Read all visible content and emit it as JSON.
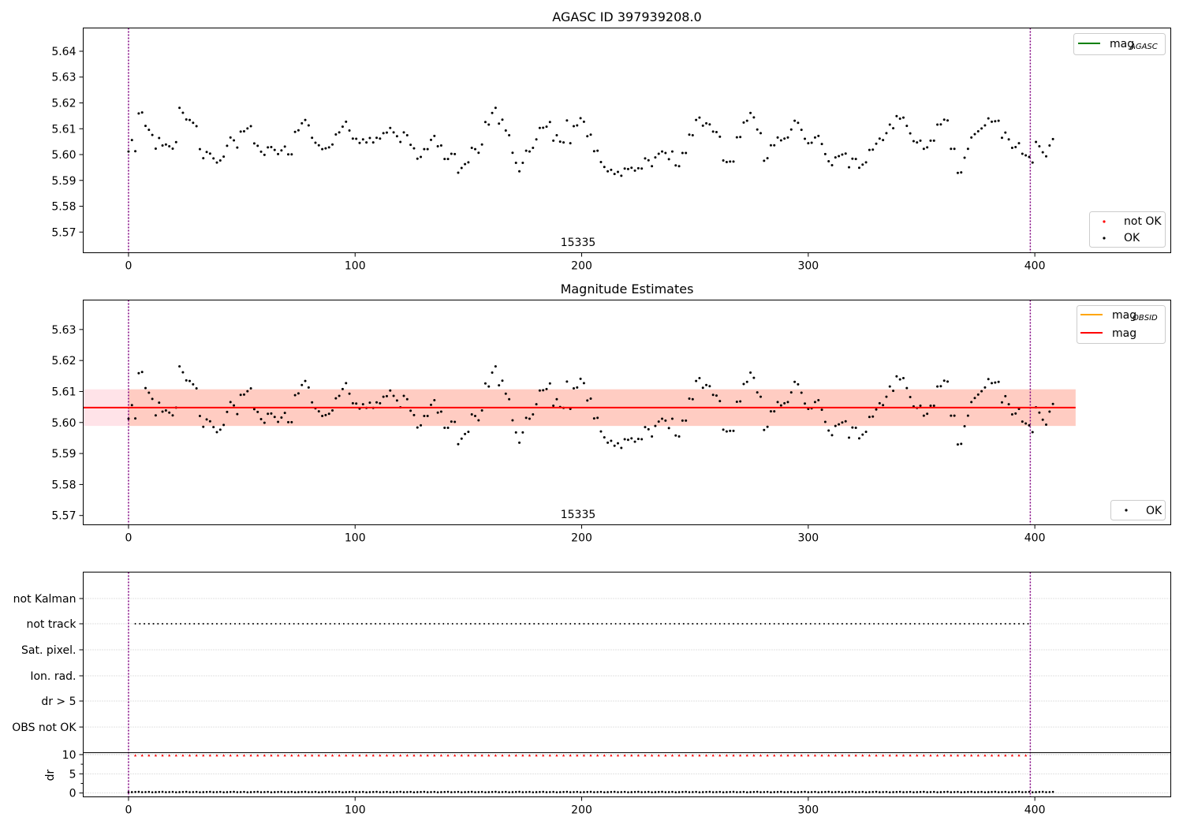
{
  "chart_data": [
    {
      "type": "scatter",
      "title": "AGASC ID 397939208.0",
      "annotation": "15335",
      "xlim": [
        -20,
        460
      ],
      "ylim": [
        5.562,
        5.649
      ],
      "xticks": [
        0,
        100,
        200,
        300,
        400
      ],
      "yticks": [
        5.57,
        5.58,
        5.59,
        5.6,
        5.61,
        5.62,
        5.63,
        5.64
      ],
      "vlines": [
        0,
        398
      ],
      "legend_lines": [
        {
          "name": "mag",
          "sub": "AGASC",
          "color": "#008000"
        }
      ],
      "legend_points": [
        {
          "name": "not OK",
          "color": "#ff0000"
        },
        {
          "name": "OK",
          "color": "#000000"
        }
      ],
      "series": [
        {
          "name": "OK",
          "color": "#000000",
          "values": [
            5.6012,
            5.6056,
            5.6013,
            5.6159,
            5.6163,
            5.6111,
            5.6096,
            5.6076,
            5.6023,
            5.6064,
            5.6035,
            5.6039,
            5.6032,
            5.6023,
            5.6048,
            5.6181,
            5.6162,
            5.6136,
            5.6134,
            5.6123,
            5.611,
            5.6021,
            5.5986,
            5.601,
            5.6004,
            5.5985,
            5.5969,
            5.5977,
            5.5992,
            5.6034,
            5.6066,
            5.6055,
            5.6027,
            5.6089,
            5.609,
            5.6101,
            5.611,
            5.6043,
            5.6034,
            5.6011,
            5.5999,
            5.6028,
            5.6029,
            5.6018,
            5.6002,
            5.6016,
            5.6031,
            5.6001,
            5.6001,
            5.6088,
            5.6094,
            5.6121,
            5.6134,
            5.6113,
            5.6065,
            5.6046,
            5.6036,
            5.6021,
            5.6024,
            5.6028,
            5.6039,
            5.6078,
            5.6086,
            5.6108,
            5.6127,
            5.6093,
            5.6062,
            5.6061,
            5.6045,
            5.6059,
            5.6047,
            5.6064,
            5.6047,
            5.6065,
            5.6062,
            5.6083,
            5.6085,
            5.6103,
            5.6086,
            5.6071,
            5.6049,
            5.6086,
            5.6075,
            5.6038,
            5.6024,
            5.5984,
            5.5991,
            5.6021,
            5.6021,
            5.6057,
            5.6072,
            5.6032,
            5.6035,
            5.5983,
            5.5983,
            5.6003,
            5.6002,
            5.593,
            5.5948,
            5.5963,
            5.597,
            5.6026,
            5.6021,
            5.6007,
            5.6039,
            5.6126,
            5.6116,
            5.6161,
            5.6181,
            5.612,
            5.6135,
            5.6093,
            5.6075,
            5.6007,
            5.5968,
            5.5935,
            5.5968,
            5.6015,
            5.6012,
            5.6026,
            5.6059,
            5.6103,
            5.6104,
            5.6108,
            5.6126,
            5.6054,
            5.6075,
            5.605,
            5.6047,
            5.6132,
            5.6044,
            5.611,
            5.6113,
            5.6141,
            5.6127,
            5.6071,
            5.6077,
            5.6013,
            5.6015,
            5.5971,
            5.5952,
            5.5935,
            5.5941,
            5.5925,
            5.5933,
            5.5918,
            5.5946,
            5.5944,
            5.5949,
            5.5938,
            5.5947,
            5.5946,
            5.5985,
            5.5978,
            5.5955,
            5.5989,
            5.6003,
            5.6012,
            5.6006,
            5.5982,
            5.6012,
            5.5958,
            5.5955,
            5.6006,
            5.6006,
            5.6077,
            5.6075,
            5.6134,
            5.6143,
            5.6112,
            5.6121,
            5.6117,
            5.6089,
            5.6087,
            5.6069,
            5.5977,
            5.5971,
            5.5973,
            5.5973,
            5.6067,
            5.6068,
            5.6124,
            5.6131,
            5.6161,
            5.6144,
            5.6097,
            5.6083,
            5.5976,
            5.5986,
            5.6036,
            5.6036,
            5.6066,
            5.6055,
            5.6062,
            5.6066,
            5.6097,
            5.6131,
            5.6123,
            5.6096,
            5.6061,
            5.6044,
            5.6046,
            5.6066,
            5.6072,
            5.6041,
            5.6002,
            5.5974,
            5.5959,
            5.5989,
            5.5994,
            5.6,
            5.6004,
            5.5951,
            5.5984,
            5.5983,
            5.5949,
            5.5961,
            5.597,
            5.6018,
            5.6019,
            5.6042,
            5.6062,
            5.6056,
            5.6083,
            5.6116,
            5.6102,
            5.6149,
            5.6139,
            5.6143,
            5.6111,
            5.6082,
            5.6052,
            5.6047,
            5.6054,
            5.6022,
            5.6028,
            5.6054,
            5.6054,
            5.6116,
            5.6117,
            5.6135,
            5.6132,
            5.6022,
            5.6022,
            5.5929,
            5.5931,
            5.5988,
            5.6022,
            5.6066,
            5.6079,
            5.609,
            5.6101,
            5.6113,
            5.614,
            5.6127,
            5.6129,
            5.6131,
            5.6065,
            5.6085,
            5.6059,
            5.6026,
            5.6029,
            5.6044,
            5.6003,
            5.5997,
            5.5991,
            5.5969,
            5.6049,
            5.6032,
            5.6009,
            5.5993,
            5.6035,
            5.606
          ]
        }
      ]
    },
    {
      "type": "scatter",
      "title": "Magnitude Estimates",
      "annotation": "15335",
      "xlim": [
        -20,
        460
      ],
      "ylim": [
        5.567,
        5.6395
      ],
      "xticks": [
        0,
        100,
        200,
        300,
        400
      ],
      "yticks": [
        5.57,
        5.58,
        5.59,
        5.6,
        5.61,
        5.62,
        5.63
      ],
      "vlines": [
        0,
        398
      ],
      "mag_line": 5.6048,
      "band": [
        5.5989,
        5.6107
      ],
      "band_x": [
        -20,
        418
      ],
      "legend_lines": [
        {
          "name": "mag",
          "sub": "OBSID",
          "color": "#ffa500"
        },
        {
          "name": "mag",
          "sub": "",
          "color": "#ff0000"
        }
      ],
      "legend_points": [
        {
          "name": "OK",
          "color": "#000000"
        }
      ],
      "series": [
        {
          "name": "OK",
          "color": "#000000",
          "ref": 0
        }
      ]
    },
    {
      "type": "scatter",
      "title": "",
      "xlim": [
        -20,
        460
      ],
      "xticks": [
        0,
        100,
        200,
        300,
        400
      ],
      "vlines": [
        0,
        398
      ],
      "flag_labels": [
        "not Kalman",
        "not track",
        "Sat. pixel.",
        "Ion. rad.",
        "dr > 5",
        "OBS not OK"
      ],
      "flag_points": [
        {
          "label": "not track",
          "x_from": 3,
          "x_to": 398,
          "step": 2
        }
      ],
      "dr": {
        "ylabel": "dr",
        "yticks": [
          0,
          5,
          10
        ],
        "ylim": [
          -1,
          10.5
        ],
        "dr_values_approx": 0.2,
        "threshold_markers": 9.8,
        "marker_x_from": 3,
        "marker_x_to": 398,
        "marker_step": 3
      }
    }
  ]
}
